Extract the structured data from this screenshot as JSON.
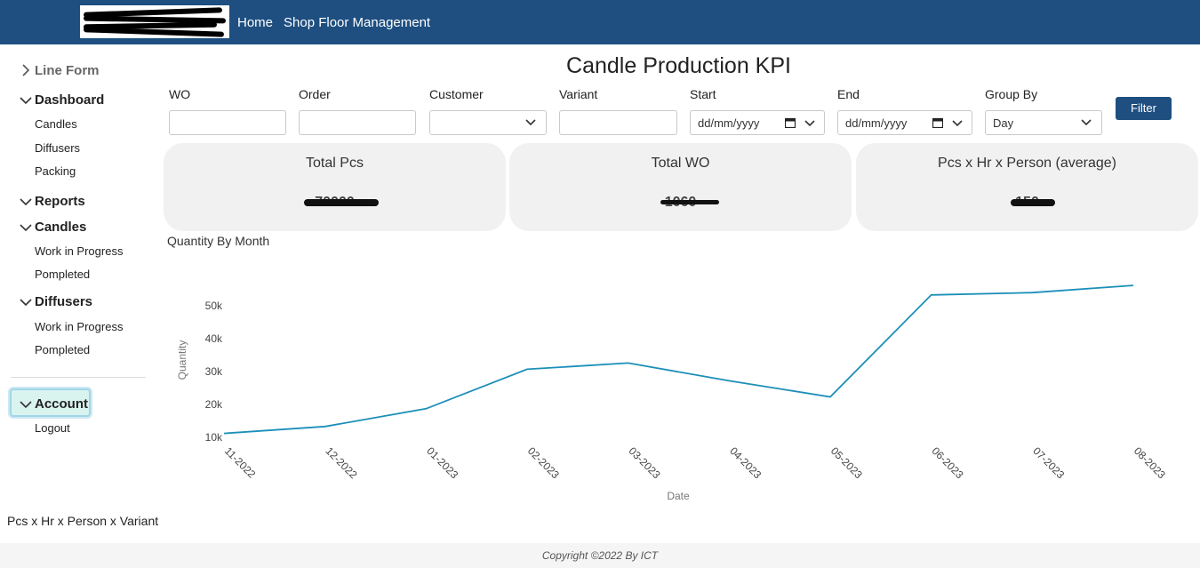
{
  "navbar": {
    "links": [
      "Home",
      "Shop Floor Management"
    ]
  },
  "sidebar": {
    "line_form": "Line Form",
    "dashboard": "Dashboard",
    "dashboard_items": [
      "Candles",
      "Diffusers",
      "Packing"
    ],
    "reports": "Reports",
    "candles": "Candles",
    "candles_items": [
      "Work in Progress",
      "Pompleted"
    ],
    "diffusers": "Diffusers",
    "diffusers_items": [
      "Work in Progress",
      "Pompleted"
    ],
    "account": "Account",
    "logout": "Logout"
  },
  "page_title": "Candle Production KPI",
  "filters": {
    "wo": {
      "label": "WO",
      "value": ""
    },
    "order": {
      "label": "Order",
      "value": ""
    },
    "customer": {
      "label": "Customer",
      "value": ""
    },
    "variant": {
      "label": "Variant",
      "value": ""
    },
    "start": {
      "label": "Start",
      "placeholder": "dd/mm/yyyy"
    },
    "end": {
      "label": "End",
      "placeholder": "dd/mm/yyyy"
    },
    "group_by": {
      "label": "Group By",
      "value": "Day"
    },
    "filter_button": "Filter"
  },
  "kpis": [
    {
      "title": "Total Pcs",
      "value": "70000"
    },
    {
      "title": "Total WO",
      "value": "1060"
    },
    {
      "title": "Pcs x Hr x Person (average)",
      "value": "150"
    }
  ],
  "chart_title": "Quantity By Month",
  "chart_data": {
    "type": "line",
    "x": [
      "11-2022",
      "12-2022",
      "01-2023",
      "02-2023",
      "03-2023",
      "04-2023",
      "05-2023",
      "06-2023",
      "07-2023",
      "08-2023"
    ],
    "values": [
      11200,
      13300,
      18700,
      30700,
      32600,
      27200,
      22300,
      53300,
      54000,
      56200
    ],
    "xlabel": "Date",
    "ylabel": "Quantity",
    "y_ticks": [
      "10k",
      "20k",
      "30k",
      "40k",
      "50k"
    ],
    "grid": false,
    "line_color": "#1b8fb8"
  },
  "bottom_label": "Pcs x Hr x Person x Variant",
  "footer": "Copyright ©2022 By ICT"
}
